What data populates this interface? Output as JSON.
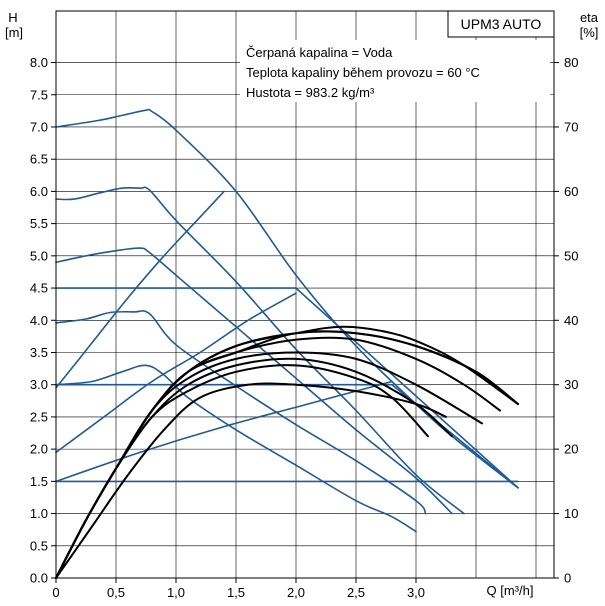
{
  "chart_data": {
    "type": "line",
    "title": "UPM3 AUTO",
    "info_lines": [
      "Čerpaná kapalina = Voda",
      "Teplota kapaliny během provozu = 60 °C",
      "Hustota = 983.2 kg/m³"
    ],
    "y_axis": {
      "label_top": "H",
      "label_unit": "[m]",
      "range": [
        0,
        8.8
      ],
      "ticks": [
        "0.0",
        "0.5",
        "1.0",
        "1.5",
        "2.0",
        "2.5",
        "3.0",
        "3.5",
        "4.0",
        "4.5",
        "5.0",
        "5.5",
        "6.0",
        "6.5",
        "7.0",
        "7.5",
        "8.0"
      ],
      "tick_values": [
        0,
        0.5,
        1,
        1.5,
        2,
        2.5,
        3,
        3.5,
        4,
        4.5,
        5,
        5.5,
        6,
        6.5,
        7,
        7.5,
        8
      ]
    },
    "y2_axis": {
      "label_top": "eta",
      "label_unit": "[%]",
      "range": [
        0,
        88
      ],
      "ticks": [
        "0",
        "10",
        "20",
        "30",
        "40",
        "50",
        "60",
        "70",
        "80"
      ],
      "tick_values": [
        0,
        10,
        20,
        30,
        40,
        50,
        60,
        70,
        80
      ]
    },
    "x_axis": {
      "label": "Q [m³/h]",
      "range": [
        0,
        4.15
      ],
      "ticks": [
        "0",
        "0,5",
        "1,0",
        "1,5",
        "2,0",
        "2,5",
        "3,0"
      ],
      "tick_values": [
        0,
        0.5,
        1,
        1.5,
        2,
        2.5,
        3
      ]
    },
    "grid": true,
    "colors": {
      "pump_curve": "#1f5a94",
      "efficiency": "#000000",
      "grid": "#000000"
    },
    "series": [
      {
        "kind": "head",
        "x": [
          0,
          0.35,
          0.55,
          0.75,
          0.8,
          1.0,
          1.5,
          2.0,
          2.5,
          3.0,
          3.3,
          3.85
        ],
        "y": [
          7.0,
          7.1,
          7.18,
          7.26,
          7.24,
          6.95,
          6.0,
          4.7,
          3.6,
          2.7,
          2.2,
          1.4
        ]
      },
      {
        "kind": "head",
        "x": [
          0,
          0.15,
          0.35,
          0.55,
          0.7,
          0.78,
          1.0,
          1.5,
          2.0,
          2.5,
          3.0,
          3.4
        ],
        "y": [
          5.88,
          5.88,
          5.97,
          6.05,
          6.05,
          6.02,
          5.55,
          4.6,
          3.55,
          2.6,
          1.6,
          1.0
        ]
      },
      {
        "kind": "head",
        "x": [
          0,
          0.25,
          0.5,
          0.7,
          0.78,
          1.0,
          1.5,
          2.0,
          2.5,
          3.0,
          3.3
        ],
        "y": [
          4.9,
          5.0,
          5.08,
          5.12,
          5.05,
          4.7,
          3.9,
          3.1,
          2.3,
          1.55,
          1.0
        ]
      },
      {
        "kind": "head",
        "x": [
          0,
          0.25,
          0.45,
          0.65,
          0.78,
          1.0,
          1.5,
          2.0,
          2.5,
          3.0,
          3.08
        ],
        "y": [
          3.96,
          4.02,
          4.12,
          4.13,
          4.1,
          3.62,
          2.98,
          2.38,
          1.82,
          1.2,
          1.0
        ]
      },
      {
        "kind": "head",
        "x": [
          0,
          0.3,
          0.55,
          0.75,
          0.9,
          1.1,
          1.5,
          2.0,
          2.5,
          2.8,
          3.0
        ],
        "y": [
          3.0,
          3.05,
          3.2,
          3.3,
          3.15,
          2.8,
          2.3,
          1.75,
          1.2,
          0.95,
          0.72
        ]
      },
      {
        "kind": "head",
        "x": [
          0,
          2.0,
          3.85
        ],
        "y": [
          4.5,
          4.5,
          1.4
        ]
      },
      {
        "kind": "head",
        "x": [
          0,
          2.8,
          3.85
        ],
        "y": [
          3.0,
          3.0,
          1.4
        ]
      },
      {
        "kind": "head",
        "x": [
          0,
          3.85
        ],
        "y": [
          1.5,
          1.5
        ]
      },
      {
        "kind": "control",
        "x": [
          0,
          0.3,
          0.6,
          0.9,
          1.2,
          1.4
        ],
        "y": [
          2.95,
          3.65,
          4.35,
          5.0,
          5.6,
          6.0
        ]
      },
      {
        "kind": "control",
        "x": [
          0,
          0.4,
          0.8,
          1.2,
          1.6,
          2.0
        ],
        "y": [
          1.95,
          2.5,
          3.05,
          3.5,
          4.0,
          4.42
        ]
      },
      {
        "kind": "control",
        "x": [
          0,
          0.7,
          1.4,
          2.1,
          2.8
        ],
        "y": [
          1.5,
          1.95,
          2.35,
          2.7,
          3.05
        ]
      },
      {
        "kind": "efficiency",
        "x": [
          0,
          0.25,
          0.5,
          0.8,
          1.1,
          1.5,
          2.0,
          2.5,
          2.8,
          3.1
        ],
        "y": [
          0,
          9,
          17,
          25,
          29,
          32,
          33,
          31,
          28,
          22
        ]
      },
      {
        "kind": "efficiency",
        "x": [
          0,
          0.25,
          0.5,
          0.8,
          1.1,
          1.5,
          2.0,
          2.5,
          3.0,
          3.3
        ],
        "y": [
          0,
          9,
          17,
          25,
          30,
          33,
          34,
          32,
          27,
          22
        ]
      },
      {
        "kind": "efficiency",
        "x": [
          0,
          0.25,
          0.5,
          0.8,
          1.1,
          1.5,
          2.0,
          2.5,
          3.0,
          3.55
        ],
        "y": [
          0,
          9,
          17,
          26,
          31,
          34,
          35,
          34,
          30,
          24
        ]
      },
      {
        "kind": "efficiency",
        "x": [
          0,
          0.25,
          0.5,
          0.8,
          1.1,
          1.5,
          2.0,
          2.5,
          3.0,
          3.4,
          3.7
        ],
        "y": [
          0,
          9,
          17,
          26,
          32,
          35,
          37,
          37,
          34,
          30,
          26
        ]
      },
      {
        "kind": "efficiency",
        "x": [
          0,
          0.25,
          0.5,
          0.8,
          1.1,
          1.5,
          2.0,
          2.5,
          3.0,
          3.5,
          3.85
        ],
        "y": [
          0,
          9,
          17,
          26,
          32,
          35,
          38,
          38,
          36,
          32,
          27
        ]
      },
      {
        "kind": "efficiency",
        "x": [
          0,
          0.25,
          0.5,
          0.8,
          1.1,
          1.5,
          2.0,
          2.5,
          3.0,
          3.5,
          3.85
        ],
        "y": [
          0,
          9,
          17,
          26,
          32,
          36,
          38,
          38,
          36,
          32,
          27
        ]
      },
      {
        "kind": "efficiency",
        "x": [
          0,
          0.3,
          0.6,
          0.9,
          1.2,
          1.6,
          2.0,
          2.5,
          3.0,
          3.25
        ],
        "y": [
          0,
          8,
          16,
          23,
          28,
          30,
          30,
          29,
          27,
          25
        ]
      },
      {
        "kind": "efficiency",
        "x": [
          0,
          0.25,
          0.5,
          0.8,
          1.1,
          1.5,
          2.0,
          2.4,
          2.8,
          3.1,
          3.4,
          3.85
        ],
        "y": [
          0,
          9,
          17,
          26,
          32,
          36,
          38,
          39,
          38,
          36,
          33,
          27
        ]
      }
    ]
  }
}
